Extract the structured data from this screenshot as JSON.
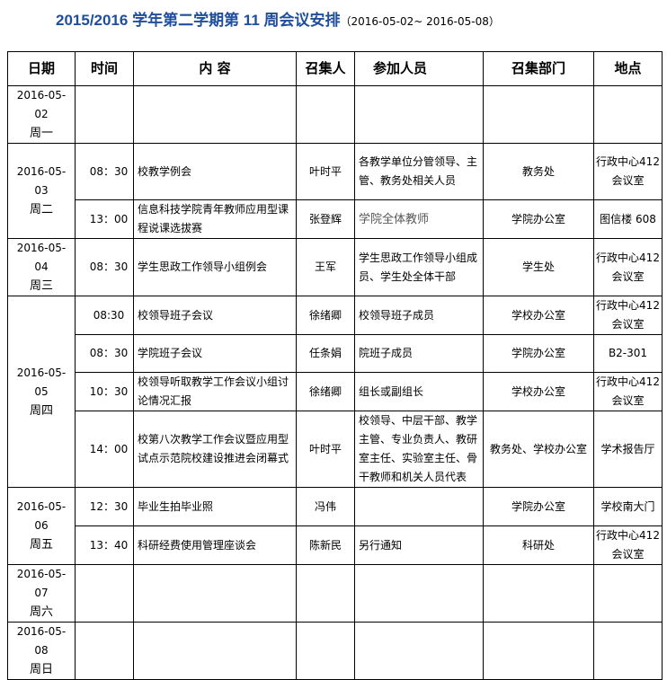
{
  "title": {
    "main": "2015/2016 学年第二学期第 11 周会议安排",
    "range": "（2016-05-02~ 2016-05-08）"
  },
  "headers": [
    "日期",
    "时间",
    "内 容",
    "召集人",
    "参加人员",
    "召集部门",
    "地点"
  ],
  "days": [
    {
      "date": "2016-05-02",
      "weekday": "周一",
      "meetings": [
        {
          "time": "",
          "content": "",
          "convener": "",
          "attendees": "",
          "department": "",
          "location": ""
        }
      ]
    },
    {
      "date": "2016-05-03",
      "weekday": "周二",
      "meetings": [
        {
          "time": "08：30",
          "content": "校教学例会",
          "convener": "叶时平",
          "attendees": "各教学单位分管领导、主管、教务处相关人员",
          "department": "教务处",
          "location": "行政中心412 会议室"
        },
        {
          "time": "13：00",
          "content": "信息科技学院青年教师应用型课程说课选拔赛",
          "convener": "张登辉",
          "attendees": "学院全体教师",
          "department": "学院办公室",
          "location": "图信楼 608"
        }
      ]
    },
    {
      "date": "2016-05-04",
      "weekday": "周三",
      "meetings": [
        {
          "time": "08：30",
          "content": "学生思政工作领导小组例会",
          "convener": "王军",
          "attendees": "学生思政工作领导小组成员、学生处全体干部",
          "department": "学生处",
          "location": "行政中心412 会议室"
        }
      ]
    },
    {
      "date": "2016-05-05",
      "weekday": "周四",
      "meetings": [
        {
          "time": "08:30",
          "content": "校领导班子会议",
          "convener": "徐绪卿",
          "attendees": "校领导班子成员",
          "department": "学校办公室",
          "location": "行政中心412 会议室"
        },
        {
          "time": "08：30",
          "content": "学院班子会议",
          "convener": "任条娟",
          "attendees": "院班子成员",
          "department": "学院办公室",
          "location": "B2-301"
        },
        {
          "time": "10：30",
          "content": "校领导听取教学工作会议小组讨论情况汇报",
          "convener": "徐绪卿",
          "attendees": "组长或副组长",
          "department": "学校办公室",
          "location": "行政中心412 会议室"
        },
        {
          "time": "14：00",
          "content": "校第八次教学工作会议暨应用型试点示范院校建设推进会闭幕式",
          "convener": "叶时平",
          "attendees": "校领导、中层干部、教学主管、专业负责人、教研室主任、实验室主任、骨干教师和机关人员代表",
          "department": "教务处、学校办公室",
          "location": "学术报告厅"
        }
      ]
    },
    {
      "date": "2016-05-06",
      "weekday": "周五",
      "meetings": [
        {
          "time": "12：30",
          "content": "毕业生拍毕业照",
          "convener": "冯伟",
          "attendees": "",
          "department": "学院办公室",
          "location": "学校南大门"
        },
        {
          "time": "13：40",
          "content": "科研经费使用管理座谈会",
          "convener": "陈新民",
          "attendees": "另行通知",
          "department": "科研处",
          "location": "行政中心412 会议室"
        }
      ]
    },
    {
      "date": "2016-05-07",
      "weekday": "周六",
      "meetings": [
        {
          "time": "",
          "content": "",
          "convener": "",
          "attendees": "",
          "department": "",
          "location": ""
        }
      ]
    },
    {
      "date": "2016-05-08",
      "weekday": "周日",
      "meetings": [
        {
          "time": "",
          "content": "",
          "convener": "",
          "attendees": "",
          "department": "",
          "location": ""
        }
      ]
    }
  ]
}
